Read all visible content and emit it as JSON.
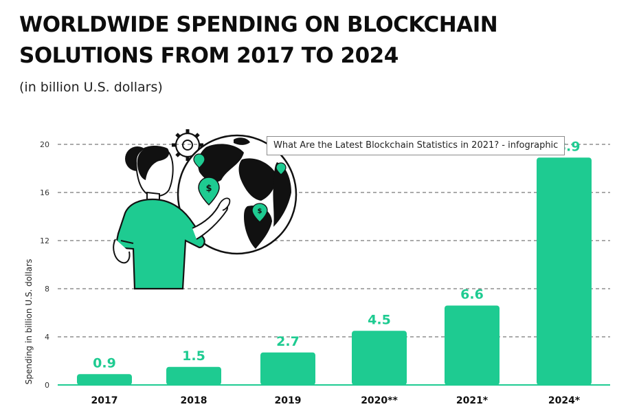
{
  "header": {
    "title": "WORLDWIDE SPENDING ON BLOCKCHAIN SOLUTIONS FROM 2017 TO 2024",
    "subtitle": "(in billion U.S. dollars)"
  },
  "tooltip": "What Are the Latest Blockchain Statistics in 2021? - infographic",
  "chart_data": {
    "type": "bar",
    "categories": [
      "2017",
      "2018",
      "2019",
      "2020**",
      "2021*",
      "2024*"
    ],
    "values": [
      0.9,
      1.5,
      2.7,
      4.5,
      6.6,
      18.9
    ],
    "data_labels": [
      "0.9",
      "1.5",
      "2.7",
      "4.5",
      "6.6",
      "18.9"
    ],
    "ylabel": "Spending in billion U.S. dollars",
    "xlabel": "",
    "ylim": [
      0,
      20
    ],
    "yticks": [
      0,
      4,
      8,
      12,
      16,
      20
    ],
    "grid": true,
    "grid_style": "dashed",
    "legend": "none",
    "colors": {
      "bar": "#1ecb91",
      "label": "#1ecb91",
      "axis": "#1ecb91",
      "grid": "#555555"
    }
  },
  "illustration": {
    "icons": [
      "woman-figure-icon",
      "globe-icon",
      "gear-icon",
      "dollar-pin-icon"
    ],
    "colors": {
      "accent": "#1ecb91",
      "ink": "#000000"
    }
  }
}
